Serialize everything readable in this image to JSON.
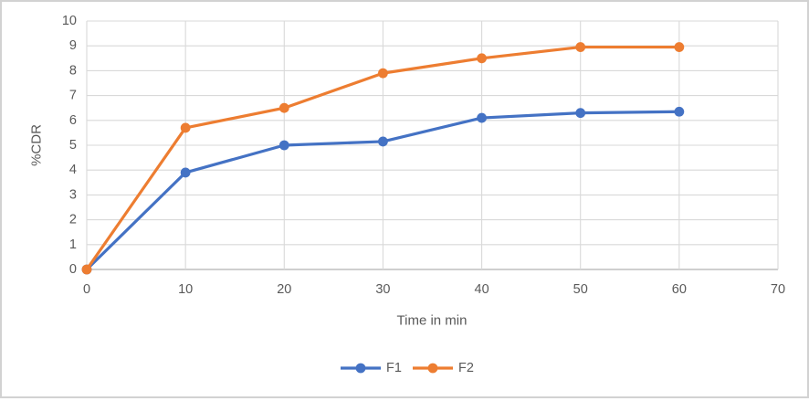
{
  "chart_data": {
    "type": "line",
    "x": [
      0,
      10,
      20,
      30,
      40,
      50,
      60
    ],
    "series": [
      {
        "name": "F1",
        "color": "#4472C4",
        "values": [
          0,
          3.9,
          5.0,
          5.15,
          6.1,
          6.3,
          6.35
        ]
      },
      {
        "name": "F2",
        "color": "#ED7D31",
        "values": [
          0,
          5.7,
          6.5,
          7.9,
          8.5,
          8.95,
          8.95
        ]
      }
    ],
    "title": "",
    "xlabel": "Time in min",
    "ylabel": "%CDR",
    "xlim": [
      0,
      70
    ],
    "ylim": [
      0,
      10
    ],
    "x_ticks": [
      0,
      10,
      20,
      30,
      40,
      50,
      60,
      70
    ],
    "y_ticks": [
      0,
      1,
      2,
      3,
      4,
      5,
      6,
      7,
      8,
      9,
      10
    ],
    "grid": true,
    "legend_position": "bottom-center",
    "marker": "circle",
    "colors": {
      "gridline": "#D9D9D9",
      "axis_line": "#BFBFBF",
      "text": "#595959",
      "background": "#FFFFFF",
      "border": "#D2D2D2"
    }
  }
}
